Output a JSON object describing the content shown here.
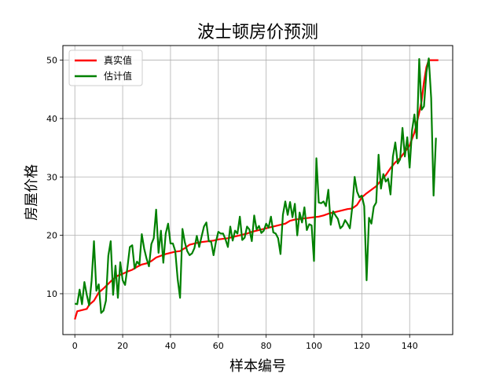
{
  "chart_data": {
    "type": "line",
    "title": "波士顿房价预测",
    "xlabel": "样本编号",
    "ylabel": "房屋价格",
    "xlim": [
      -5,
      158
    ],
    "ylim": [
      3.0,
      52.5
    ],
    "xticks": [
      0,
      20,
      40,
      60,
      80,
      100,
      120,
      140
    ],
    "yticks": [
      10,
      20,
      30,
      40,
      50
    ],
    "grid": true,
    "legend_position": "top-left",
    "series": [
      {
        "name": "真实值",
        "color": "#ff0000",
        "points": [
          [
            0,
            5.6
          ],
          [
            1,
            7.0
          ],
          [
            3,
            7.2
          ],
          [
            5,
            7.4
          ],
          [
            6,
            8.1
          ],
          [
            8,
            8.8
          ],
          [
            10,
            10.2
          ],
          [
            12,
            10.9
          ],
          [
            14,
            11.7
          ],
          [
            16,
            12.5
          ],
          [
            18,
            13.1
          ],
          [
            20,
            13.4
          ],
          [
            22,
            13.8
          ],
          [
            24,
            14.1
          ],
          [
            26,
            14.6
          ],
          [
            28,
            15.0
          ],
          [
            30,
            15.2
          ],
          [
            32,
            15.6
          ],
          [
            34,
            16.2
          ],
          [
            36,
            16.5
          ],
          [
            38,
            16.8
          ],
          [
            40,
            17.0
          ],
          [
            42,
            17.2
          ],
          [
            44,
            17.3
          ],
          [
            46,
            17.8
          ],
          [
            48,
            18.4
          ],
          [
            50,
            18.6
          ],
          [
            52,
            18.8
          ],
          [
            54,
            18.9
          ],
          [
            56,
            19.0
          ],
          [
            58,
            19.1
          ],
          [
            60,
            19.3
          ],
          [
            62,
            19.4
          ],
          [
            64,
            19.5
          ],
          [
            66,
            19.7
          ],
          [
            68,
            19.9
          ],
          [
            70,
            20.1
          ],
          [
            72,
            20.3
          ],
          [
            74,
            20.6
          ],
          [
            76,
            20.8
          ],
          [
            78,
            21.0
          ],
          [
            80,
            21.2
          ],
          [
            82,
            21.4
          ],
          [
            84,
            21.6
          ],
          [
            86,
            21.8
          ],
          [
            88,
            22.0
          ],
          [
            90,
            22.5
          ],
          [
            92,
            22.7
          ],
          [
            94,
            22.8
          ],
          [
            96,
            22.9
          ],
          [
            98,
            23.0
          ],
          [
            100,
            23.1
          ],
          [
            102,
            23.2
          ],
          [
            104,
            23.4
          ],
          [
            106,
            23.7
          ],
          [
            108,
            23.9
          ],
          [
            110,
            24.1
          ],
          [
            112,
            24.3
          ],
          [
            114,
            24.5
          ],
          [
            116,
            24.6
          ],
          [
            118,
            25.2
          ],
          [
            120,
            26.5
          ],
          [
            122,
            27.2
          ],
          [
            124,
            27.8
          ],
          [
            126,
            28.4
          ],
          [
            128,
            29.4
          ],
          [
            130,
            30.3
          ],
          [
            132,
            31.5
          ],
          [
            134,
            32.5
          ],
          [
            136,
            33.2
          ],
          [
            138,
            34.3
          ],
          [
            140,
            35.4
          ],
          [
            142,
            37.6
          ],
          [
            144,
            41.0
          ],
          [
            145,
            43.0
          ],
          [
            146,
            46.3
          ],
          [
            147,
            48.8
          ],
          [
            148,
            50.0
          ],
          [
            150,
            50.0
          ],
          [
            152,
            50.0
          ]
        ]
      },
      {
        "name": "估计值",
        "color": "#008000",
        "points": [
          [
            0,
            8.3
          ],
          [
            1,
            8.2
          ],
          [
            2,
            10.7
          ],
          [
            3,
            8.2
          ],
          [
            4,
            12.0
          ],
          [
            5,
            9.8
          ],
          [
            6,
            8.0
          ],
          [
            7,
            12.2
          ],
          [
            8,
            19.0
          ],
          [
            9,
            10.5
          ],
          [
            10,
            11.6
          ],
          [
            11,
            6.7
          ],
          [
            12,
            7.1
          ],
          [
            13,
            8.8
          ],
          [
            14,
            16.5
          ],
          [
            15,
            19.0
          ],
          [
            16,
            9.8
          ],
          [
            17,
            14.8
          ],
          [
            18,
            9.3
          ],
          [
            19,
            15.4
          ],
          [
            20,
            12.3
          ],
          [
            21,
            11.5
          ],
          [
            22,
            14.5
          ],
          [
            23,
            18.0
          ],
          [
            24,
            18.3
          ],
          [
            25,
            14.3
          ],
          [
            26,
            15.5
          ],
          [
            27,
            15.0
          ],
          [
            28,
            20.2
          ],
          [
            29,
            17.7
          ],
          [
            30,
            16.0
          ],
          [
            31,
            14.7
          ],
          [
            32,
            18.5
          ],
          [
            33,
            19.5
          ],
          [
            34,
            24.4
          ],
          [
            35,
            17.0
          ],
          [
            36,
            20.8
          ],
          [
            37,
            15.3
          ],
          [
            38,
            20.3
          ],
          [
            39,
            22.0
          ],
          [
            40,
            18.6
          ],
          [
            41,
            18.6
          ],
          [
            42,
            17.3
          ],
          [
            43,
            12.5
          ],
          [
            44,
            9.3
          ],
          [
            45,
            21.1
          ],
          [
            46,
            18.8
          ],
          [
            47,
            17.3
          ],
          [
            48,
            16.6
          ],
          [
            49,
            16.9
          ],
          [
            50,
            17.8
          ],
          [
            51,
            19.9
          ],
          [
            52,
            18.0
          ],
          [
            53,
            19.8
          ],
          [
            54,
            21.5
          ],
          [
            55,
            22.2
          ],
          [
            56,
            19.0
          ],
          [
            57,
            18.9
          ],
          [
            58,
            16.6
          ],
          [
            59,
            18.9
          ],
          [
            60,
            20.6
          ],
          [
            61,
            20.3
          ],
          [
            62,
            20.3
          ],
          [
            63,
            19.3
          ],
          [
            64,
            18.0
          ],
          [
            65,
            21.5
          ],
          [
            66,
            19.1
          ],
          [
            67,
            20.8
          ],
          [
            68,
            20.3
          ],
          [
            69,
            23.2
          ],
          [
            70,
            19.2
          ],
          [
            71,
            19.6
          ],
          [
            72,
            21.5
          ],
          [
            73,
            21.0
          ],
          [
            74,
            19.0
          ],
          [
            75,
            23.4
          ],
          [
            76,
            21.0
          ],
          [
            77,
            21.6
          ],
          [
            78,
            20.4
          ],
          [
            79,
            20.8
          ],
          [
            80,
            22.0
          ],
          [
            81,
            21.3
          ],
          [
            82,
            23.2
          ],
          [
            83,
            20.5
          ],
          [
            84,
            20.3
          ],
          [
            85,
            19.5
          ],
          [
            86,
            16.8
          ],
          [
            87,
            23.5
          ],
          [
            88,
            25.8
          ],
          [
            89,
            23.5
          ],
          [
            90,
            25.7
          ],
          [
            91,
            23.1
          ],
          [
            92,
            25.4
          ],
          [
            93,
            20.0
          ],
          [
            94,
            23.9
          ],
          [
            95,
            22.2
          ],
          [
            96,
            24.8
          ],
          [
            97,
            20.9
          ],
          [
            98,
            21.9
          ],
          [
            99,
            21.7
          ],
          [
            100,
            15.6
          ],
          [
            101,
            33.2
          ],
          [
            102,
            25.6
          ],
          [
            103,
            25.5
          ],
          [
            104,
            25.8
          ],
          [
            105,
            25.0
          ],
          [
            106,
            27.8
          ],
          [
            107,
            21.8
          ],
          [
            108,
            24.1
          ],
          [
            109,
            23.4
          ],
          [
            110,
            22.8
          ],
          [
            111,
            21.2
          ],
          [
            112,
            21.6
          ],
          [
            113,
            22.6
          ],
          [
            114,
            22.0
          ],
          [
            115,
            21.2
          ],
          [
            116,
            24.8
          ],
          [
            117,
            30.0
          ],
          [
            118,
            27.5
          ],
          [
            119,
            26.5
          ],
          [
            120,
            26.8
          ],
          [
            121,
            25.0
          ],
          [
            122,
            12.3
          ],
          [
            123,
            23.0
          ],
          [
            124,
            22.0
          ],
          [
            125,
            24.9
          ],
          [
            126,
            25.6
          ],
          [
            127,
            33.8
          ],
          [
            128,
            28.0
          ],
          [
            129,
            30.5
          ],
          [
            130,
            29.2
          ],
          [
            131,
            29.7
          ],
          [
            132,
            27.0
          ],
          [
            133,
            33.5
          ],
          [
            134,
            35.9
          ],
          [
            135,
            32.3
          ],
          [
            136,
            33.0
          ],
          [
            137,
            38.4
          ],
          [
            138,
            33.5
          ],
          [
            139,
            36.8
          ],
          [
            140,
            31.6
          ],
          [
            141,
            38.0
          ],
          [
            142,
            40.7
          ],
          [
            143,
            36.6
          ],
          [
            144,
            50.2
          ],
          [
            145,
            41.5
          ],
          [
            146,
            42.1
          ],
          [
            147,
            47.9
          ],
          [
            148,
            50.3
          ],
          [
            149,
            43.5
          ],
          [
            150,
            26.8
          ],
          [
            151,
            36.7
          ]
        ]
      }
    ]
  }
}
